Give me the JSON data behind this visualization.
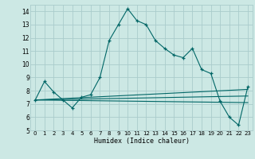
{
  "title": "",
  "xlabel": "Humidex (Indice chaleur)",
  "background_color": "#cce8e4",
  "grid_color": "#aacccc",
  "line_color": "#006666",
  "xlim": [
    -0.5,
    23.5
  ],
  "ylim": [
    5,
    14.5
  ],
  "yticks": [
    5,
    6,
    7,
    8,
    9,
    10,
    11,
    12,
    13,
    14
  ],
  "xticks": [
    0,
    1,
    2,
    3,
    4,
    5,
    6,
    7,
    8,
    9,
    10,
    11,
    12,
    13,
    14,
    15,
    16,
    17,
    18,
    19,
    20,
    21,
    22,
    23
  ],
  "main_x": [
    0,
    1,
    2,
    3,
    4,
    5,
    6,
    7,
    8,
    9,
    10,
    11,
    12,
    13,
    14,
    15,
    16,
    17,
    18,
    19,
    20,
    21,
    22,
    23
  ],
  "main_y": [
    7.3,
    8.7,
    7.9,
    7.3,
    6.7,
    7.5,
    7.7,
    9.0,
    11.8,
    13.0,
    14.2,
    13.3,
    13.0,
    11.8,
    11.2,
    10.7,
    10.5,
    11.2,
    9.6,
    9.3,
    7.2,
    6.0,
    5.4,
    8.3
  ],
  "line1_x": [
    0,
    23
  ],
  "line1_y": [
    7.3,
    8.1
  ],
  "line2_x": [
    0,
    23
  ],
  "line2_y": [
    7.3,
    7.6
  ],
  "line3_x": [
    0,
    23
  ],
  "line3_y": [
    7.3,
    7.1
  ]
}
